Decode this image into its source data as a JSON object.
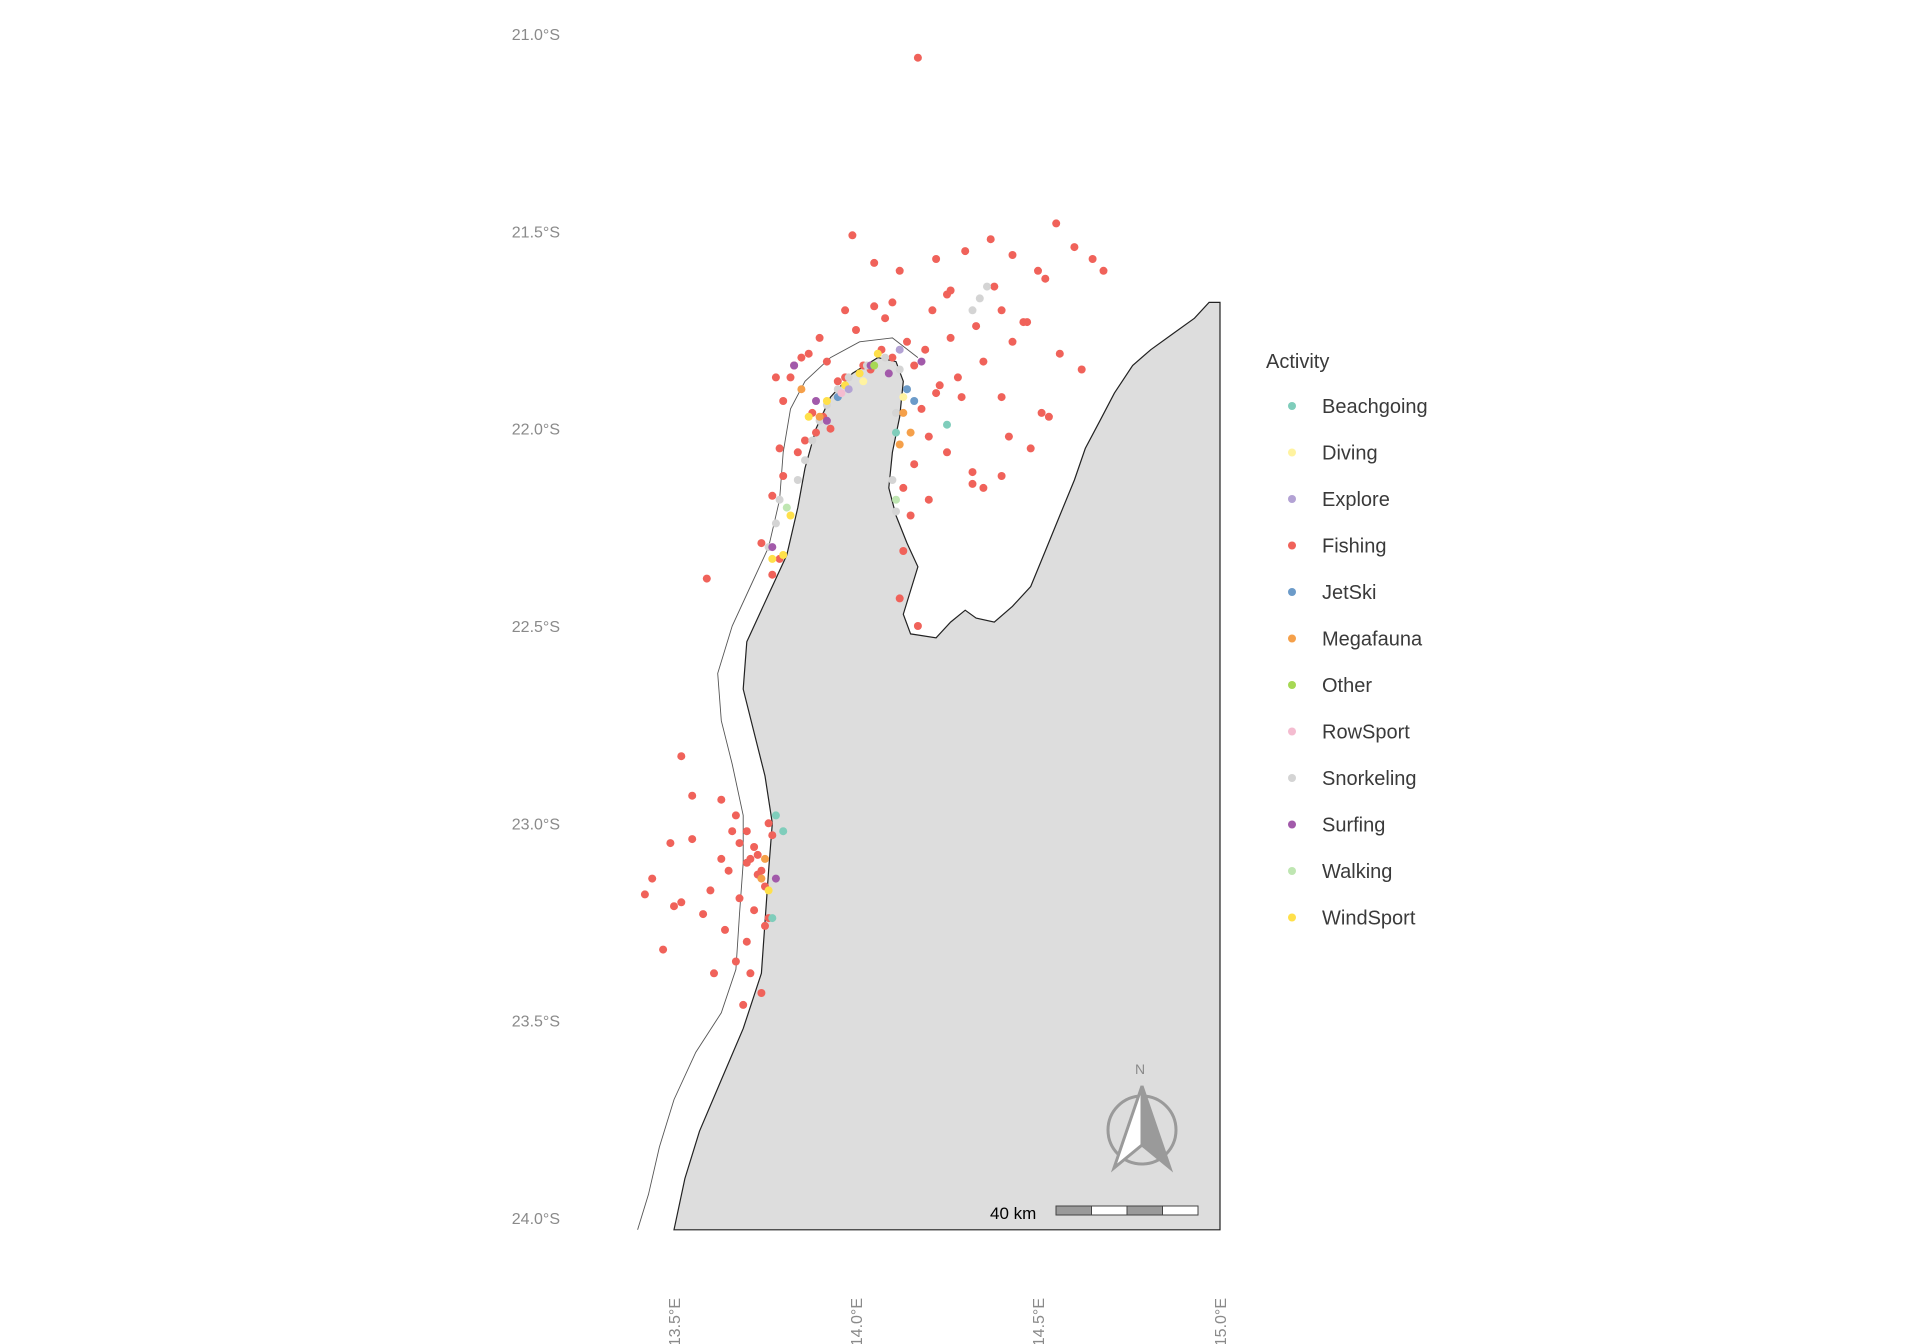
{
  "chart_data": {
    "type": "scatter",
    "title": "",
    "xlabel": "",
    "ylabel": "",
    "xlim": [
      113.35,
      115.0
    ],
    "ylim": [
      -24.03,
      -21.0
    ],
    "x_ticks": [
      {
        "value": 113.5,
        "label": "113.5°E"
      },
      {
        "value": 114.0,
        "label": "114.0°E"
      },
      {
        "value": 114.5,
        "label": "114.5°E"
      },
      {
        "value": 115.0,
        "label": "115.0°E"
      }
    ],
    "y_ticks": [
      {
        "value": -21.0,
        "label": "21.0°S"
      },
      {
        "value": -21.5,
        "label": "21.5°S"
      },
      {
        "value": -22.0,
        "label": "22.0°S"
      },
      {
        "value": -22.5,
        "label": "22.5°S"
      },
      {
        "value": -23.0,
        "label": "23.0°S"
      },
      {
        "value": -23.5,
        "label": "23.5°S"
      },
      {
        "value": -24.0,
        "label": "24.0°S"
      }
    ],
    "legend": {
      "title": "Activity",
      "position": "right",
      "items": [
        {
          "name": "Beachgoing",
          "color": "#7fcdbb"
        },
        {
          "name": "Diving",
          "color": "#fff3a0"
        },
        {
          "name": "Explore",
          "color": "#b3a2d4"
        },
        {
          "name": "Fishing",
          "color": "#f0625a"
        },
        {
          "name": "JetSki",
          "color": "#6c9bc9"
        },
        {
          "name": "Megafauna",
          "color": "#f5a04a"
        },
        {
          "name": "Other",
          "color": "#a6d854"
        },
        {
          "name": "RowSport",
          "color": "#f4bcd0"
        },
        {
          "name": "Snorkeling",
          "color": "#d4d4d4"
        },
        {
          "name": "Surfing",
          "color": "#a25aaa"
        },
        {
          "name": "Walking",
          "color": "#bfe6b2"
        },
        {
          "name": "WindSport",
          "color": "#ffe04a"
        }
      ]
    },
    "land_color": "#dddddd",
    "coastline": [
      [
        115.0,
        -21.68
      ],
      [
        114.97,
        -21.68
      ],
      [
        114.93,
        -21.72
      ],
      [
        114.87,
        -21.76
      ],
      [
        114.81,
        -21.8
      ],
      [
        114.76,
        -21.84
      ],
      [
        114.71,
        -21.91
      ],
      [
        114.67,
        -21.98
      ],
      [
        114.63,
        -22.05
      ],
      [
        114.6,
        -22.13
      ],
      [
        114.56,
        -22.22
      ],
      [
        114.52,
        -22.31
      ],
      [
        114.48,
        -22.4
      ],
      [
        114.43,
        -22.45
      ],
      [
        114.38,
        -22.49
      ],
      [
        114.33,
        -22.48
      ],
      [
        114.3,
        -22.46
      ],
      [
        114.26,
        -22.49
      ],
      [
        114.22,
        -22.53
      ],
      [
        114.15,
        -22.52
      ],
      [
        114.13,
        -22.47
      ],
      [
        114.15,
        -22.41
      ],
      [
        114.17,
        -22.35
      ],
      [
        114.14,
        -22.29
      ],
      [
        114.11,
        -22.22
      ],
      [
        114.09,
        -22.15
      ],
      [
        114.1,
        -22.06
      ],
      [
        114.12,
        -21.97
      ],
      [
        114.13,
        -21.88
      ],
      [
        114.11,
        -21.83
      ],
      [
        114.06,
        -21.82
      ],
      [
        113.99,
        -21.86
      ],
      [
        113.93,
        -21.92
      ],
      [
        113.89,
        -22.0
      ],
      [
        113.86,
        -22.1
      ],
      [
        113.84,
        -22.2
      ],
      [
        113.81,
        -22.32
      ],
      [
        113.76,
        -22.42
      ],
      [
        113.7,
        -22.54
      ],
      [
        113.69,
        -22.66
      ],
      [
        113.72,
        -22.77
      ],
      [
        113.75,
        -22.88
      ],
      [
        113.77,
        -23.0
      ],
      [
        113.76,
        -23.12
      ],
      [
        113.75,
        -23.25
      ],
      [
        113.74,
        -23.38
      ],
      [
        113.69,
        -23.52
      ],
      [
        113.63,
        -23.65
      ],
      [
        113.57,
        -23.78
      ],
      [
        113.53,
        -23.9
      ],
      [
        113.5,
        -24.03
      ],
      [
        115.0,
        -24.03
      ]
    ],
    "zone_boundary": [
      [
        114.17,
        -21.82
      ],
      [
        114.1,
        -21.77
      ],
      [
        114.01,
        -21.78
      ],
      [
        113.93,
        -21.82
      ],
      [
        113.86,
        -21.88
      ],
      [
        113.82,
        -21.95
      ],
      [
        113.8,
        -22.06
      ],
      [
        113.79,
        -22.18
      ],
      [
        113.76,
        -22.3
      ],
      [
        113.71,
        -22.4
      ],
      [
        113.66,
        -22.5
      ],
      [
        113.62,
        -22.62
      ],
      [
        113.63,
        -22.74
      ],
      [
        113.66,
        -22.85
      ],
      [
        113.69,
        -22.98
      ],
      [
        113.69,
        -23.1
      ],
      [
        113.68,
        -23.23
      ],
      [
        113.67,
        -23.37
      ],
      [
        113.63,
        -23.48
      ],
      [
        113.56,
        -23.58
      ],
      [
        113.5,
        -23.7
      ],
      [
        113.46,
        -23.82
      ],
      [
        113.43,
        -23.94
      ],
      [
        113.4,
        -24.03
      ]
    ],
    "series": [
      {
        "name": "Fishing",
        "x": [
          114.17,
          113.99,
          114.05,
          114.12,
          114.22,
          114.3,
          114.37,
          114.43,
          114.5,
          114.55,
          114.6,
          114.65,
          114.68,
          114.52,
          114.38,
          114.25,
          114.1,
          113.97,
          113.9,
          113.85,
          113.82,
          113.8,
          113.88,
          113.93,
          113.86,
          113.95,
          114.02,
          114.07,
          114.14,
          114.19,
          114.26,
          114.33,
          114.4,
          114.46,
          114.35,
          114.28,
          114.22,
          114.18,
          114.2,
          114.25,
          114.16,
          114.13,
          114.2,
          114.32,
          114.4,
          114.48,
          114.53,
          113.78,
          113.83,
          113.87,
          113.92,
          113.97,
          114.04,
          114.1,
          114.16,
          114.23,
          114.29,
          113.8,
          113.84,
          113.89,
          113.91,
          113.79,
          113.77,
          114.15,
          114.13,
          114.12,
          114.17,
          113.74,
          113.79,
          113.77,
          113.59,
          113.52,
          113.55,
          113.49,
          113.63,
          113.67,
          113.7,
          113.72,
          113.7,
          113.73,
          113.75,
          113.77,
          113.68,
          113.72,
          113.75,
          113.63,
          113.6,
          113.44,
          113.42,
          113.52,
          113.58,
          113.64,
          113.7,
          113.71,
          113.74,
          113.68,
          113.66,
          113.55,
          113.5,
          113.47,
          113.67,
          113.71,
          113.76,
          113.74,
          113.69,
          113.61,
          113.65,
          113.73,
          113.76,
          114.47,
          114.43,
          114.4,
          114.56,
          114.62,
          114.32,
          114.35,
          114.42,
          114.51,
          114.21,
          114.26,
          114.0,
          114.05,
          114.08
        ],
        "y": [
          -21.06,
          -21.51,
          -21.58,
          -21.6,
          -21.57,
          -21.55,
          -21.52,
          -21.56,
          -21.6,
          -21.48,
          -21.54,
          -21.57,
          -21.6,
          -21.62,
          -21.64,
          -21.66,
          -21.68,
          -21.7,
          -21.77,
          -21.82,
          -21.87,
          -21.93,
          -21.96,
          -22.0,
          -22.03,
          -21.88,
          -21.84,
          -21.8,
          -21.78,
          -21.8,
          -21.77,
          -21.74,
          -21.7,
          -21.73,
          -21.83,
          -21.87,
          -21.91,
          -21.95,
          -22.02,
          -22.06,
          -22.09,
          -22.15,
          -22.18,
          -22.14,
          -22.12,
          -22.05,
          -21.97,
          -21.87,
          -21.84,
          -21.81,
          -21.83,
          -21.87,
          -21.85,
          -21.82,
          -21.84,
          -21.89,
          -21.92,
          -22.12,
          -22.06,
          -22.01,
          -21.97,
          -22.05,
          -22.17,
          -22.22,
          -22.31,
          -22.43,
          -22.5,
          -22.29,
          -22.33,
          -22.37,
          -22.38,
          -22.83,
          -22.93,
          -23.05,
          -22.94,
          -22.98,
          -23.02,
          -23.06,
          -23.1,
          -23.13,
          -23.16,
          -23.03,
          -23.19,
          -23.22,
          -23.26,
          -23.09,
          -23.17,
          -23.14,
          -23.18,
          -23.2,
          -23.23,
          -23.27,
          -23.3,
          -23.09,
          -23.12,
          -23.05,
          -23.02,
          -23.04,
          -23.21,
          -23.32,
          -23.35,
          -23.38,
          -23.24,
          -23.43,
          -23.46,
          -23.38,
          -23.12,
          -23.08,
          -23.0,
          -21.73,
          -21.78,
          -21.92,
          -21.81,
          -21.85,
          -22.11,
          -22.15,
          -22.02,
          -21.96,
          -21.7,
          -21.65,
          -21.75,
          -21.69,
          -21.72
        ]
      },
      {
        "name": "Snorkeling",
        "x": [
          113.84,
          113.86,
          113.88,
          113.9,
          113.92,
          113.95,
          113.98,
          114.03,
          114.08,
          114.12,
          114.14,
          114.11,
          114.1,
          114.11,
          114.36,
          114.34,
          114.32,
          113.79,
          113.78,
          113.76
        ],
        "y": [
          -22.13,
          -22.08,
          -22.03,
          -21.98,
          -21.94,
          -21.9,
          -21.87,
          -21.84,
          -21.82,
          -21.85,
          -21.9,
          -21.96,
          -22.13,
          -22.21,
          -21.64,
          -21.67,
          -21.7,
          -22.18,
          -22.24,
          -22.3
        ]
      },
      {
        "name": "Surfing",
        "x": [
          113.83,
          113.89,
          113.92,
          114.04,
          114.09,
          114.18,
          113.77,
          113.78
        ],
        "y": [
          -21.84,
          -21.93,
          -21.98,
          -21.84,
          -21.86,
          -21.83,
          -22.3,
          -23.14
        ]
      },
      {
        "name": "WindSport",
        "x": [
          113.87,
          113.92,
          113.97,
          114.01,
          114.06,
          113.82,
          113.8,
          113.77,
          113.76
        ],
        "y": [
          -21.97,
          -21.93,
          -21.89,
          -21.86,
          -21.81,
          -22.22,
          -22.32,
          -22.33,
          -23.17
        ]
      },
      {
        "name": "Megafauna",
        "x": [
          113.85,
          113.9,
          114.13,
          114.15,
          114.12,
          113.75,
          113.74
        ],
        "y": [
          -21.9,
          -21.97,
          -21.96,
          -22.01,
          -22.04,
          -23.09,
          -23.14
        ]
      },
      {
        "name": "Beachgoing",
        "x": [
          113.78,
          113.8,
          113.77,
          114.11,
          114.25
        ],
        "y": [
          -22.98,
          -23.02,
          -23.24,
          -22.01,
          -21.99
        ]
      },
      {
        "name": "JetSki",
        "x": [
          114.14,
          114.16,
          113.95
        ],
        "y": [
          -21.9,
          -21.93,
          -21.92
        ]
      },
      {
        "name": "Explore",
        "x": [
          113.98,
          114.12
        ],
        "y": [
          -21.9,
          -21.8
        ]
      },
      {
        "name": "Diving",
        "x": [
          114.02,
          114.13
        ],
        "y": [
          -21.88,
          -21.92
        ]
      },
      {
        "name": "Walking",
        "x": [
          113.81,
          114.11
        ],
        "y": [
          -22.2,
          -22.18
        ]
      },
      {
        "name": "Other",
        "x": [
          114.05
        ],
        "y": [
          -21.84
        ]
      },
      {
        "name": "RowSport",
        "x": [
          113.96
        ],
        "y": [
          -21.91
        ]
      }
    ],
    "scale_bar": {
      "label": "40 km"
    },
    "north_arrow": {
      "label": "N"
    }
  }
}
